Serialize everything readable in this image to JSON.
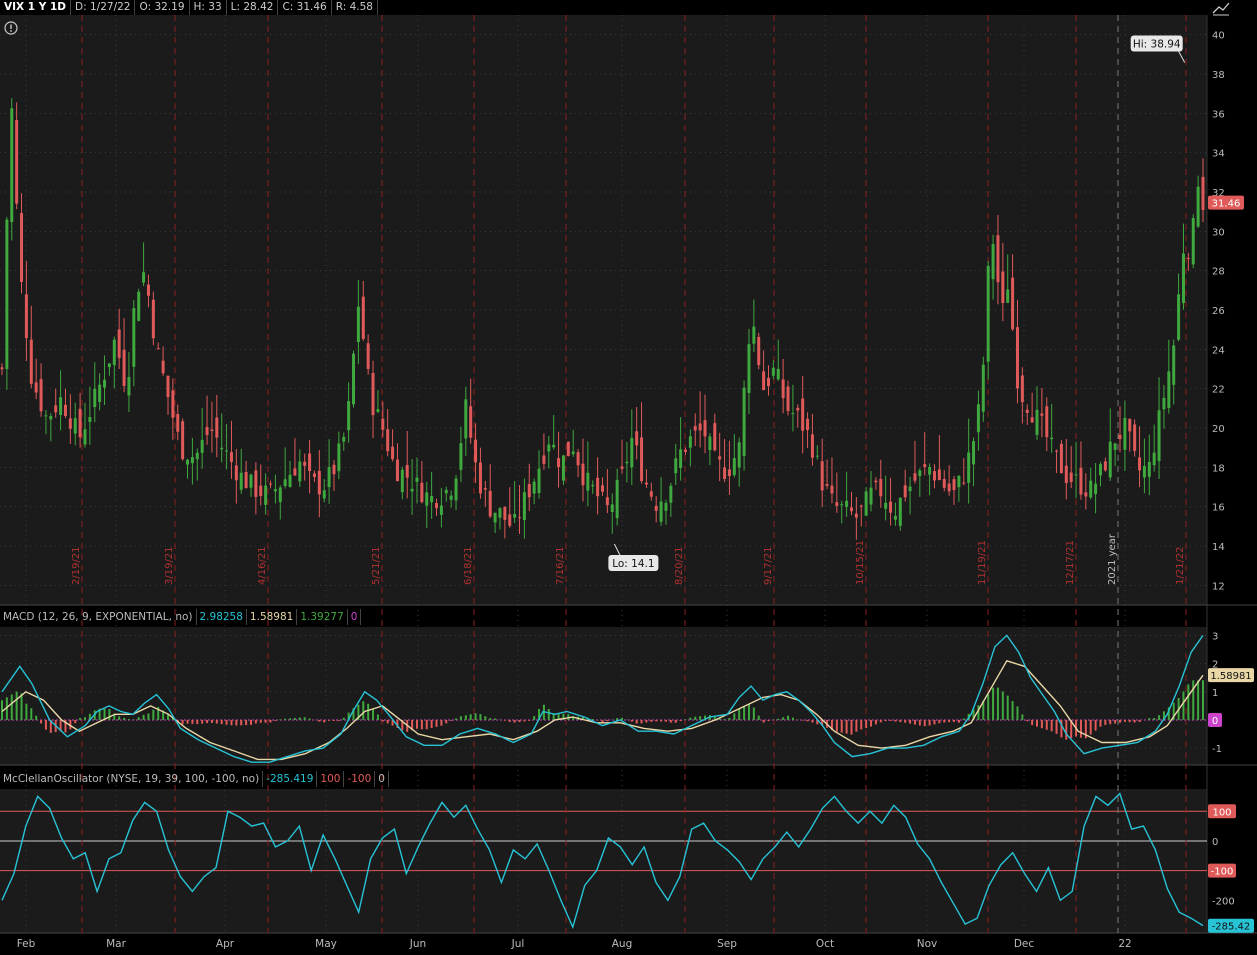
{
  "header": {
    "symbol": "VIX 1 Y 1D",
    "date": "D: 1/27/22",
    "open": "O: 32.19",
    "high": "H: 33",
    "low": "L: 28.42",
    "close": "C: 31.46",
    "range": "R: 4.58"
  },
  "colors": {
    "up": "#3fa83f",
    "down": "#e05a5a",
    "macd": "#27c3d6",
    "signal": "#e9d8a6",
    "mcclellan": "#27c3d6",
    "bands": "#e05a5a",
    "zero": "#cc44cc"
  },
  "chart_data": [
    {
      "type": "candlestick",
      "title": "VIX 1 Y 1D",
      "ylim": [
        11,
        41
      ],
      "yticks": [
        12,
        14,
        16,
        18,
        20,
        22,
        24,
        26,
        28,
        30,
        32,
        34,
        36,
        38,
        40
      ],
      "x_months": [
        "Feb",
        "Mar",
        "Apr",
        "May",
        "Jun",
        "Jul",
        "Aug",
        "Sep",
        "Oct",
        "Nov",
        "Dec",
        "22"
      ],
      "expiration_dates": [
        "2/19/21",
        "3/19/21",
        "4/16/21",
        "5/21/21",
        "6/18/21",
        "7/16/21",
        "8/20/21",
        "9/17/21",
        "10/15/21",
        "11/19/21",
        "12/17/21",
        "1/21/22"
      ],
      "year_marker": "2021 year",
      "high_label": "Hi: 38.94",
      "low_label": "Lo: 14.1",
      "last_price": "31.46",
      "close_path": [
        [
          0,
          23.0
        ],
        [
          3,
          37
        ],
        [
          6,
          28
        ],
        [
          10,
          22.5
        ],
        [
          15,
          20.5
        ],
        [
          20,
          21.5
        ],
        [
          26,
          19.5
        ],
        [
          30,
          21
        ],
        [
          35,
          23
        ],
        [
          38,
          24.5
        ],
        [
          42,
          22
        ],
        [
          45,
          27
        ],
        [
          48,
          28
        ],
        [
          52,
          24
        ],
        [
          56,
          21.5
        ],
        [
          60,
          19
        ],
        [
          65,
          18.5
        ],
        [
          70,
          20
        ],
        [
          75,
          18.8
        ],
        [
          80,
          17.6
        ],
        [
          85,
          16.9
        ],
        [
          90,
          16.6
        ],
        [
          95,
          17.4
        ],
        [
          100,
          18.3
        ],
        [
          104,
          17.2
        ],
        [
          108,
          17.0
        ],
        [
          112,
          18.0
        ],
        [
          116,
          20.0
        ],
        [
          120,
          26.5
        ],
        [
          124,
          21.5
        ],
        [
          128,
          20.0
        ],
        [
          132,
          18.0
        ],
        [
          136,
          17.6
        ],
        [
          140,
          17.0
        ],
        [
          144,
          16.4
        ],
        [
          148,
          16.6
        ],
        [
          152,
          17.2
        ],
        [
          156,
          21.0
        ],
        [
          160,
          17.5
        ],
        [
          164,
          16.0
        ],
        [
          168,
          15.6
        ],
        [
          172,
          14.9
        ],
        [
          176,
          16.4
        ],
        [
          180,
          17.8
        ],
        [
          184,
          19.5
        ],
        [
          188,
          18.2
        ],
        [
          192,
          19.2
        ],
        [
          196,
          17.4
        ],
        [
          200,
          16.6
        ],
        [
          204,
          15.8
        ],
        [
          208,
          17.2
        ],
        [
          212,
          19.5
        ],
        [
          216,
          17.4
        ],
        [
          220,
          16.2
        ],
        [
          224,
          16.8
        ],
        [
          228,
          18.7
        ],
        [
          232,
          19.5
        ],
        [
          236,
          19.9
        ],
        [
          240,
          18.2
        ],
        [
          244,
          17.8
        ],
        [
          248,
          19.0
        ],
        [
          252,
          26.0
        ],
        [
          256,
          22.0
        ],
        [
          260,
          23.0
        ],
        [
          264,
          21.0
        ],
        [
          268,
          20.5
        ],
        [
          272,
          19.4
        ],
        [
          276,
          17.2
        ],
        [
          280,
          16.0
        ],
        [
          284,
          15.8
        ],
        [
          288,
          15.4
        ],
        [
          292,
          16.6
        ],
        [
          296,
          16.8
        ],
        [
          300,
          15.7
        ],
        [
          304,
          16.8
        ],
        [
          308,
          17.5
        ],
        [
          312,
          18.0
        ],
        [
          316,
          17.2
        ],
        [
          320,
          16.6
        ],
        [
          324,
          17.8
        ],
        [
          328,
          20.1
        ],
        [
          330,
          23.0
        ],
        [
          332,
          28.5
        ],
        [
          334,
          30.0
        ],
        [
          336,
          25.0
        ],
        [
          338,
          27.8
        ],
        [
          340,
          25.0
        ],
        [
          342,
          22.0
        ],
        [
          346,
          21.0
        ],
        [
          350,
          20.0
        ],
        [
          354,
          18.6
        ],
        [
          358,
          17.6
        ],
        [
          362,
          17.2
        ],
        [
          366,
          16.8
        ],
        [
          370,
          17.8
        ],
        [
          374,
          19.4
        ],
        [
          378,
          20.0
        ],
        [
          382,
          17.8
        ],
        [
          386,
          18.0
        ],
        [
          390,
          21.0
        ],
        [
          394,
          24.0
        ],
        [
          396,
          27.0
        ],
        [
          398,
          30.0
        ],
        [
          400,
          28.5
        ],
        [
          402,
          33.0
        ],
        [
          404,
          31.46
        ]
      ],
      "candle_count": 247
    },
    {
      "type": "line",
      "title": "MACD",
      "label": "MACD (12, 26, 9, EXPONENTIAL, no)",
      "values_label": {
        "value": "2.98258",
        "avg": "1.58981",
        "diff": "1.39277",
        "zero": "0"
      },
      "ylim": [
        -1.6,
        3.3
      ],
      "yticks": [
        -1,
        1,
        2,
        3
      ],
      "markers": [
        "1.58981",
        "0"
      ],
      "macd_path": [
        [
          0,
          1.0
        ],
        [
          6,
          1.9
        ],
        [
          10,
          1.3
        ],
        [
          16,
          0.0
        ],
        [
          22,
          -0.6
        ],
        [
          28,
          -0.2
        ],
        [
          32,
          0.3
        ],
        [
          36,
          0.5
        ],
        [
          40,
          0.3
        ],
        [
          44,
          0.2
        ],
        [
          48,
          0.6
        ],
        [
          52,
          0.9
        ],
        [
          56,
          0.4
        ],
        [
          60,
          -0.3
        ],
        [
          66,
          -0.7
        ],
        [
          72,
          -1.0
        ],
        [
          78,
          -1.3
        ],
        [
          84,
          -1.5
        ],
        [
          90,
          -1.5
        ],
        [
          96,
          -1.3
        ],
        [
          102,
          -1.1
        ],
        [
          108,
          -1.0
        ],
        [
          114,
          -0.5
        ],
        [
          118,
          0.3
        ],
        [
          122,
          1.0
        ],
        [
          126,
          0.7
        ],
        [
          130,
          0.2
        ],
        [
          136,
          -0.6
        ],
        [
          142,
          -0.9
        ],
        [
          148,
          -0.9
        ],
        [
          154,
          -0.5
        ],
        [
          160,
          -0.3
        ],
        [
          166,
          -0.5
        ],
        [
          172,
          -0.8
        ],
        [
          178,
          -0.5
        ],
        [
          182,
          0.3
        ],
        [
          186,
          0.2
        ],
        [
          190,
          0.3
        ],
        [
          196,
          0.1
        ],
        [
          202,
          -0.2
        ],
        [
          208,
          0.0
        ],
        [
          214,
          -0.4
        ],
        [
          220,
          -0.4
        ],
        [
          226,
          -0.5
        ],
        [
          232,
          -0.2
        ],
        [
          238,
          0.1
        ],
        [
          244,
          0.2
        ],
        [
          248,
          0.8
        ],
        [
          252,
          1.2
        ],
        [
          256,
          0.7
        ],
        [
          260,
          0.9
        ],
        [
          264,
          1.0
        ],
        [
          268,
          0.7
        ],
        [
          272,
          0.3
        ],
        [
          276,
          -0.2
        ],
        [
          280,
          -0.8
        ],
        [
          286,
          -1.3
        ],
        [
          292,
          -1.2
        ],
        [
          298,
          -1.0
        ],
        [
          304,
          -1.0
        ],
        [
          310,
          -0.9
        ],
        [
          316,
          -0.6
        ],
        [
          322,
          -0.4
        ],
        [
          326,
          0.2
        ],
        [
          330,
          1.3
        ],
        [
          334,
          2.6
        ],
        [
          338,
          3.0
        ],
        [
          342,
          2.4
        ],
        [
          346,
          1.5
        ],
        [
          350,
          0.9
        ],
        [
          354,
          0.3
        ],
        [
          358,
          -0.5
        ],
        [
          364,
          -1.2
        ],
        [
          370,
          -1.0
        ],
        [
          376,
          -0.9
        ],
        [
          382,
          -0.8
        ],
        [
          388,
          -0.4
        ],
        [
          392,
          0.2
        ],
        [
          396,
          1.2
        ],
        [
          400,
          2.4
        ],
        [
          404,
          3.0
        ]
      ],
      "signal_path": [
        [
          0,
          0.3
        ],
        [
          8,
          1.0
        ],
        [
          14,
          0.7
        ],
        [
          20,
          0.0
        ],
        [
          26,
          -0.4
        ],
        [
          32,
          -0.1
        ],
        [
          38,
          0.2
        ],
        [
          44,
          0.2
        ],
        [
          50,
          0.5
        ],
        [
          56,
          0.2
        ],
        [
          62,
          -0.3
        ],
        [
          70,
          -0.8
        ],
        [
          78,
          -1.1
        ],
        [
          86,
          -1.4
        ],
        [
          94,
          -1.4
        ],
        [
          102,
          -1.2
        ],
        [
          110,
          -0.8
        ],
        [
          116,
          -0.3
        ],
        [
          122,
          0.3
        ],
        [
          128,
          0.5
        ],
        [
          134,
          0.0
        ],
        [
          140,
          -0.5
        ],
        [
          148,
          -0.7
        ],
        [
          156,
          -0.6
        ],
        [
          164,
          -0.5
        ],
        [
          172,
          -0.7
        ],
        [
          180,
          -0.4
        ],
        [
          186,
          0.0
        ],
        [
          192,
          0.1
        ],
        [
          200,
          -0.1
        ],
        [
          208,
          -0.1
        ],
        [
          216,
          -0.3
        ],
        [
          224,
          -0.4
        ],
        [
          232,
          -0.3
        ],
        [
          240,
          0.0
        ],
        [
          248,
          0.4
        ],
        [
          256,
          0.8
        ],
        [
          262,
          0.9
        ],
        [
          268,
          0.7
        ],
        [
          274,
          0.2
        ],
        [
          280,
          -0.4
        ],
        [
          288,
          -0.9
        ],
        [
          296,
          -1.0
        ],
        [
          304,
          -0.9
        ],
        [
          312,
          -0.6
        ],
        [
          320,
          -0.4
        ],
        [
          326,
          -0.1
        ],
        [
          332,
          1.0
        ],
        [
          338,
          2.1
        ],
        [
          344,
          1.9
        ],
        [
          350,
          1.2
        ],
        [
          356,
          0.5
        ],
        [
          362,
          -0.4
        ],
        [
          370,
          -0.8
        ],
        [
          378,
          -0.8
        ],
        [
          386,
          -0.6
        ],
        [
          392,
          -0.2
        ],
        [
          398,
          0.7
        ],
        [
          404,
          1.59
        ]
      ]
    },
    {
      "type": "line",
      "title": "McClellanOscillator",
      "label": "McClellanOscillator (NYSE, 19, 39, 100, -100, no)",
      "values_label": {
        "value": "-285.419",
        "upper": "100",
        "lower": "-100",
        "zero": "0"
      },
      "ylim": [
        -310,
        175
      ],
      "yticks": [
        100,
        0,
        -100,
        -200
      ],
      "markers": [
        "-285.42"
      ],
      "path": [
        [
          0,
          -200
        ],
        [
          4,
          -110
        ],
        [
          8,
          50
        ],
        [
          12,
          150
        ],
        [
          16,
          110
        ],
        [
          20,
          10
        ],
        [
          24,
          -60
        ],
        [
          28,
          -40
        ],
        [
          32,
          -170
        ],
        [
          36,
          -60
        ],
        [
          40,
          -40
        ],
        [
          44,
          70
        ],
        [
          48,
          130
        ],
        [
          52,
          100
        ],
        [
          56,
          -30
        ],
        [
          60,
          -120
        ],
        [
          64,
          -170
        ],
        [
          68,
          -120
        ],
        [
          72,
          -90
        ],
        [
          76,
          100
        ],
        [
          80,
          80
        ],
        [
          84,
          50
        ],
        [
          88,
          60
        ],
        [
          92,
          -20
        ],
        [
          96,
          0
        ],
        [
          100,
          50
        ],
        [
          104,
          -100
        ],
        [
          108,
          20
        ],
        [
          112,
          -60
        ],
        [
          116,
          -150
        ],
        [
          120,
          -240
        ],
        [
          124,
          -60
        ],
        [
          128,
          10
        ],
        [
          132,
          40
        ],
        [
          136,
          -110
        ],
        [
          140,
          -20
        ],
        [
          144,
          60
        ],
        [
          148,
          130
        ],
        [
          152,
          80
        ],
        [
          156,
          120
        ],
        [
          160,
          40
        ],
        [
          164,
          -30
        ],
        [
          168,
          -140
        ],
        [
          172,
          -30
        ],
        [
          176,
          -60
        ],
        [
          180,
          -10
        ],
        [
          184,
          -100
        ],
        [
          188,
          -200
        ],
        [
          192,
          -290
        ],
        [
          196,
          -150
        ],
        [
          200,
          -100
        ],
        [
          204,
          10
        ],
        [
          208,
          -20
        ],
        [
          212,
          -80
        ],
        [
          216,
          -20
        ],
        [
          220,
          -140
        ],
        [
          224,
          -200
        ],
        [
          228,
          -120
        ],
        [
          232,
          40
        ],
        [
          236,
          60
        ],
        [
          240,
          0
        ],
        [
          244,
          -30
        ],
        [
          248,
          -70
        ],
        [
          252,
          -130
        ],
        [
          256,
          -60
        ],
        [
          260,
          -20
        ],
        [
          264,
          30
        ],
        [
          268,
          -20
        ],
        [
          272,
          40
        ],
        [
          276,
          110
        ],
        [
          280,
          150
        ],
        [
          284,
          100
        ],
        [
          288,
          60
        ],
        [
          292,
          100
        ],
        [
          296,
          60
        ],
        [
          300,
          120
        ],
        [
          304,
          80
        ],
        [
          308,
          -10
        ],
        [
          312,
          -60
        ],
        [
          316,
          -140
        ],
        [
          320,
          -210
        ],
        [
          324,
          -280
        ],
        [
          328,
          -260
        ],
        [
          332,
          -150
        ],
        [
          336,
          -80
        ],
        [
          340,
          -40
        ],
        [
          344,
          -110
        ],
        [
          348,
          -170
        ],
        [
          352,
          -90
        ],
        [
          356,
          -200
        ],
        [
          360,
          -170
        ],
        [
          364,
          50
        ],
        [
          368,
          150
        ],
        [
          372,
          120
        ],
        [
          376,
          160
        ],
        [
          380,
          40
        ],
        [
          384,
          50
        ],
        [
          388,
          -30
        ],
        [
          392,
          -160
        ],
        [
          396,
          -240
        ],
        [
          400,
          -260
        ],
        [
          404,
          -285
        ]
      ]
    }
  ]
}
